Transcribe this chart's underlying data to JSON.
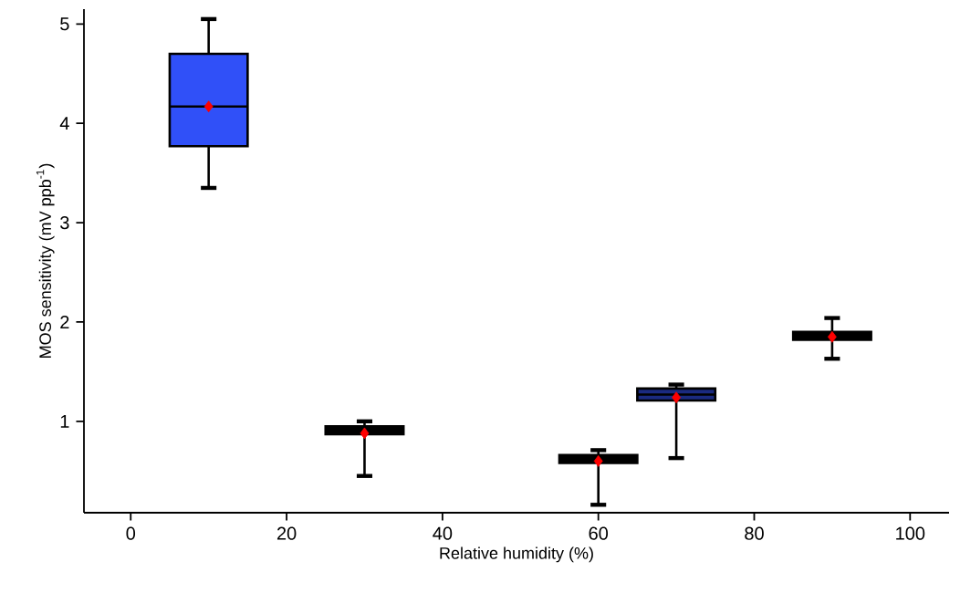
{
  "chart_data": {
    "type": "box",
    "xlabel": "Relative humidity (%)",
    "ylabel": "MOS sensitivity (mV ppb$^{-1}$)",
    "x": [
      10,
      30,
      60,
      70,
      90
    ],
    "colors": [
      "#3050f8",
      "#000000",
      "#000000",
      "#1a2a80",
      "#000000"
    ],
    "boxes": [
      {
        "low": 3.35,
        "q1": 3.77,
        "median": 4.17,
        "q3": 4.7,
        "high": 5.05,
        "mean": 4.17
      },
      {
        "low": 0.45,
        "q1": 0.87,
        "median": 0.91,
        "q3": 0.95,
        "high": 1.0,
        "mean": 0.88
      },
      {
        "low": 0.16,
        "q1": 0.58,
        "median": 0.62,
        "q3": 0.66,
        "high": 0.71,
        "mean": 0.6
      },
      {
        "low": 0.63,
        "q1": 1.21,
        "median": 1.27,
        "q3": 1.33,
        "high": 1.37,
        "mean": 1.24
      },
      {
        "low": 1.63,
        "q1": 1.82,
        "median": 1.86,
        "q3": 1.9,
        "high": 2.04,
        "mean": 1.85
      }
    ],
    "xlim": [
      -6,
      105
    ],
    "ylim": [
      0.08,
      5.15
    ],
    "xticks": [
      0,
      20,
      40,
      60,
      80,
      100
    ],
    "yticks": [
      1,
      2,
      3,
      4,
      5
    ],
    "marker": "diamond",
    "grid": false
  }
}
